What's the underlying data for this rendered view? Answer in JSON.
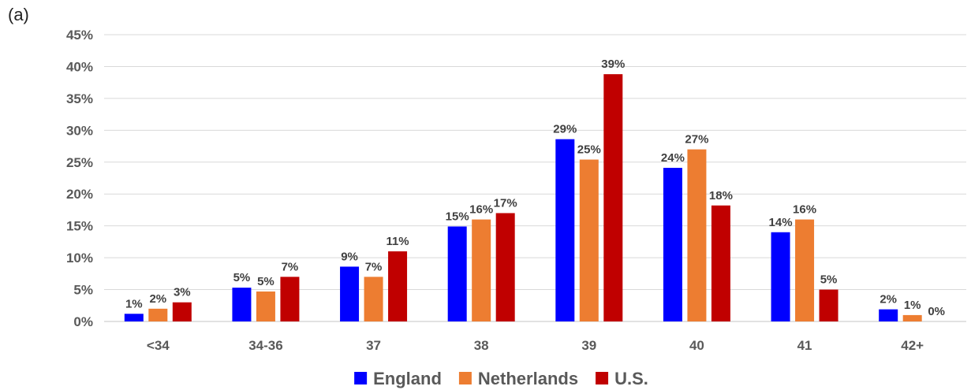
{
  "panel_label": "(a)",
  "chart_data": {
    "type": "bar",
    "title": "",
    "xlabel": "",
    "ylabel": "",
    "ylim": [
      0,
      45
    ],
    "y_ticks": [
      "0%",
      "5%",
      "10%",
      "15%",
      "20%",
      "25%",
      "30%",
      "35%",
      "40%",
      "45%"
    ],
    "grid": true,
    "legend_placement": "bottom",
    "categories": [
      "<34",
      "34-36",
      "37",
      "38",
      "39",
      "40",
      "41",
      "42+"
    ],
    "series": [
      {
        "name": "England",
        "color": "#0000ff",
        "values": [
          1.2,
          5.3,
          8.6,
          14.9,
          28.6,
          24.1,
          14.0,
          1.9
        ],
        "labels": [
          "1%",
          "5%",
          "9%",
          "15%",
          "29%",
          "24%",
          "14%",
          "2%"
        ]
      },
      {
        "name": "Netherlands",
        "color": "#ed7d31",
        "values": [
          2.0,
          4.7,
          7.0,
          16.0,
          25.4,
          27.0,
          16.0,
          1.0
        ],
        "labels": [
          "2%",
          "5%",
          "7%",
          "16%",
          "25%",
          "27%",
          "16%",
          "1%"
        ]
      },
      {
        "name": "U.S.",
        "color": "#c00000",
        "values": [
          3.0,
          7.0,
          11.0,
          17.0,
          38.8,
          18.2,
          5.0,
          0.0
        ],
        "labels": [
          "3%",
          "7%",
          "11%",
          "17%",
          "39%",
          "18%",
          "5%",
          "0%"
        ]
      }
    ]
  }
}
